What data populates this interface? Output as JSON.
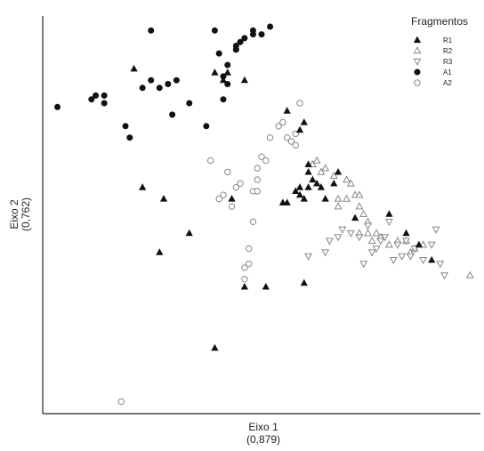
{
  "chart_data": {
    "type": "scatter",
    "xlabel": "Eixo 1",
    "xlabel_sub": "(0,879)",
    "ylabel": "Eixo 2",
    "ylabel_sub": "(0,762)",
    "xlim": [
      0,
      100
    ],
    "ylim": [
      0,
      100
    ],
    "grid": false,
    "ticks": false,
    "legend": {
      "title": "Fragmentos",
      "placement": "top-right"
    },
    "series": [
      {
        "name": "R1",
        "marker": "triangle-filled",
        "color": "#111111",
        "x": [
          20,
          39,
          41,
          42,
          46,
          56,
          60,
          59,
          65,
          63,
          64,
          67,
          62,
          55,
          56,
          58,
          60,
          59,
          61,
          61,
          59,
          68,
          72,
          80,
          84,
          87,
          90,
          22,
          26,
          33,
          27,
          43,
          46,
          51,
          39,
          60,
          61
        ],
        "y": [
          89,
          88,
          86,
          88,
          86,
          78,
          75,
          73,
          55,
          59,
          58,
          59,
          60,
          54,
          54,
          57,
          55,
          56,
          62,
          58,
          58,
          62,
          50,
          51,
          46,
          43,
          39,
          58,
          41,
          46,
          55,
          55,
          32,
          32,
          16,
          33,
          64
        ]
      },
      {
        "name": "R2",
        "marker": "triangle-open",
        "color": "#888888",
        "x": [
          62,
          63,
          65,
          64,
          67,
          68,
          68,
          70,
          72,
          73,
          74,
          75,
          75,
          73,
          76,
          77,
          78,
          80,
          82,
          84,
          85,
          86,
          88,
          70,
          71,
          73,
          99
        ],
        "y": [
          64,
          65,
          63,
          62,
          61,
          55,
          53,
          55,
          56,
          53,
          51,
          46,
          49,
          46,
          44,
          46,
          45,
          43,
          44,
          44,
          41,
          42,
          43,
          60,
          59,
          56,
          35
        ],
        "_note": ""
      },
      {
        "name": "R3",
        "marker": "triangle-down-open",
        "color": "#888888",
        "x": [
          61,
          65,
          66,
          68,
          69,
          71,
          73,
          75,
          76,
          78,
          80,
          79,
          81,
          83,
          82,
          84,
          85,
          86,
          88,
          90,
          91,
          92,
          93,
          74,
          77
        ],
        "y": [
          40,
          41,
          44,
          45,
          47,
          46,
          45,
          48,
          41,
          44,
          49,
          45,
          39,
          40,
          43,
          44,
          40,
          42,
          39,
          43,
          47,
          38,
          35,
          38,
          42
        ],
        "_note": ""
      },
      {
        "name": "A1",
        "marker": "circle-filled",
        "color": "#111111",
        "x": [
          2,
          10,
          11,
          13,
          13,
          18,
          19,
          22,
          24,
          24,
          26,
          28,
          29,
          30,
          33,
          37,
          39,
          40,
          41,
          41,
          42,
          42,
          44,
          44,
          44,
          45,
          46,
          48,
          48,
          50,
          52
        ],
        "y": [
          79,
          81,
          82,
          80,
          82,
          74,
          71,
          84,
          86,
          99,
          84,
          85,
          77,
          86,
          80,
          74,
          99,
          93,
          87,
          81,
          90,
          85,
          94,
          94,
          95,
          96,
          97,
          98,
          99,
          98,
          100
        ],
        "_note": ""
      },
      {
        "name": "A2",
        "marker": "circle-open",
        "color": "#888888",
        "x": [
          17,
          38,
          40,
          41,
          42,
          43,
          44,
          45,
          46,
          46,
          47,
          47,
          48,
          48,
          49,
          49,
          49,
          50,
          51,
          52,
          54,
          55,
          56,
          57,
          58,
          58,
          59
        ],
        "y": [
          2,
          65,
          55,
          56,
          62,
          53,
          58,
          59,
          34,
          37,
          38,
          42,
          49,
          57,
          57,
          60,
          63,
          66,
          65,
          71,
          74,
          75,
          71,
          70,
          69,
          72,
          80
        ],
        "_note": ""
      }
    ]
  }
}
